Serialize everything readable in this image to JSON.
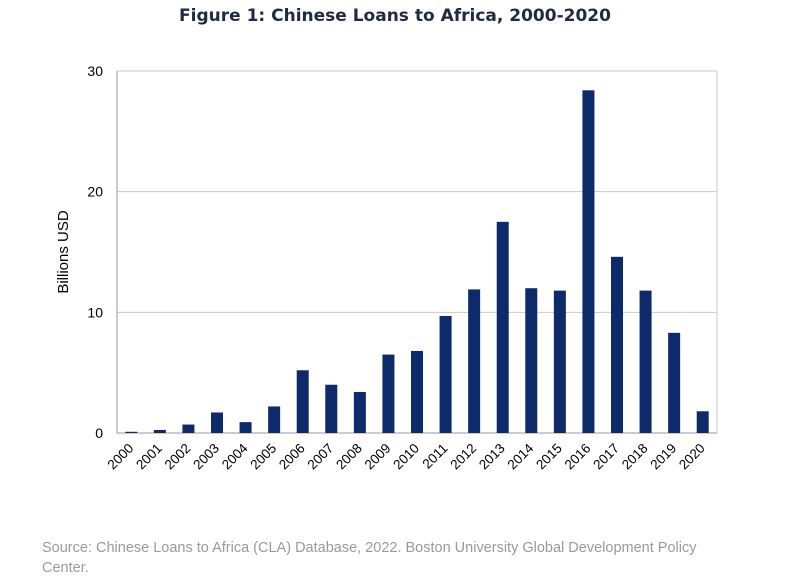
{
  "chart_data": {
    "type": "bar",
    "title": "Figure 1: Chinese Loans to Africa, 2000-2020",
    "xlabel": "",
    "ylabel": "Billions USD",
    "categories": [
      "2000",
      "2001",
      "2002",
      "2003",
      "2004",
      "2005",
      "2006",
      "2007",
      "2008",
      "2009",
      "2010",
      "2011",
      "2012",
      "2013",
      "2014",
      "2015",
      "2016",
      "2017",
      "2018",
      "2019",
      "2020"
    ],
    "values": [
      0.1,
      0.25,
      0.7,
      1.7,
      0.9,
      2.2,
      5.2,
      4.0,
      3.4,
      6.5,
      6.8,
      9.7,
      11.9,
      17.5,
      12.0,
      11.8,
      28.4,
      14.6,
      11.8,
      8.3,
      1.8
    ],
    "ylim": [
      0,
      30
    ],
    "yticks": [
      0,
      10,
      20,
      30
    ],
    "grid": true,
    "bar_color": "#0d2a6b"
  },
  "source": "Source: Chinese Loans to Africa (CLA) Database, 2022. Boston University Global Development Policy Center."
}
